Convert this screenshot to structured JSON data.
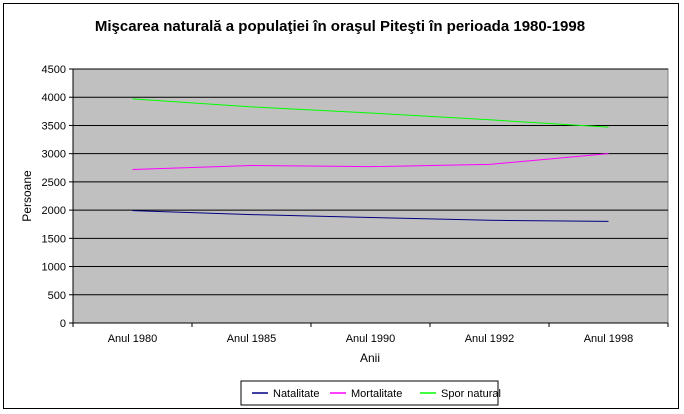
{
  "chart_data": {
    "type": "line",
    "title": "Mişcarea naturală a populaţiei în oraşul Piteşti în perioada 1980-1998",
    "xlabel": "Anii",
    "ylabel": "Persoane",
    "categories": [
      "Anul 1980",
      "Anul 1985",
      "Anul 1990",
      "Anul 1992",
      "Anul 1998"
    ],
    "ylim": [
      0,
      4500
    ],
    "yticks": [
      0,
      500,
      1000,
      1500,
      2000,
      2500,
      3000,
      3500,
      4000,
      4500
    ],
    "grid": true,
    "legend_position": "bottom",
    "plot_background": "#c0c0c0",
    "series": [
      {
        "name": "Natalitate",
        "color": "#000080",
        "values": [
          1990,
          1920,
          1870,
          1820,
          1800
        ]
      },
      {
        "name": "Mortalitate",
        "color": "#ff00ff",
        "values": [
          2720,
          2790,
          2770,
          2810,
          3000
        ]
      },
      {
        "name": "Spor natural",
        "color": "#00ff00",
        "values": [
          3970,
          3830,
          3720,
          3600,
          3470
        ]
      }
    ]
  }
}
